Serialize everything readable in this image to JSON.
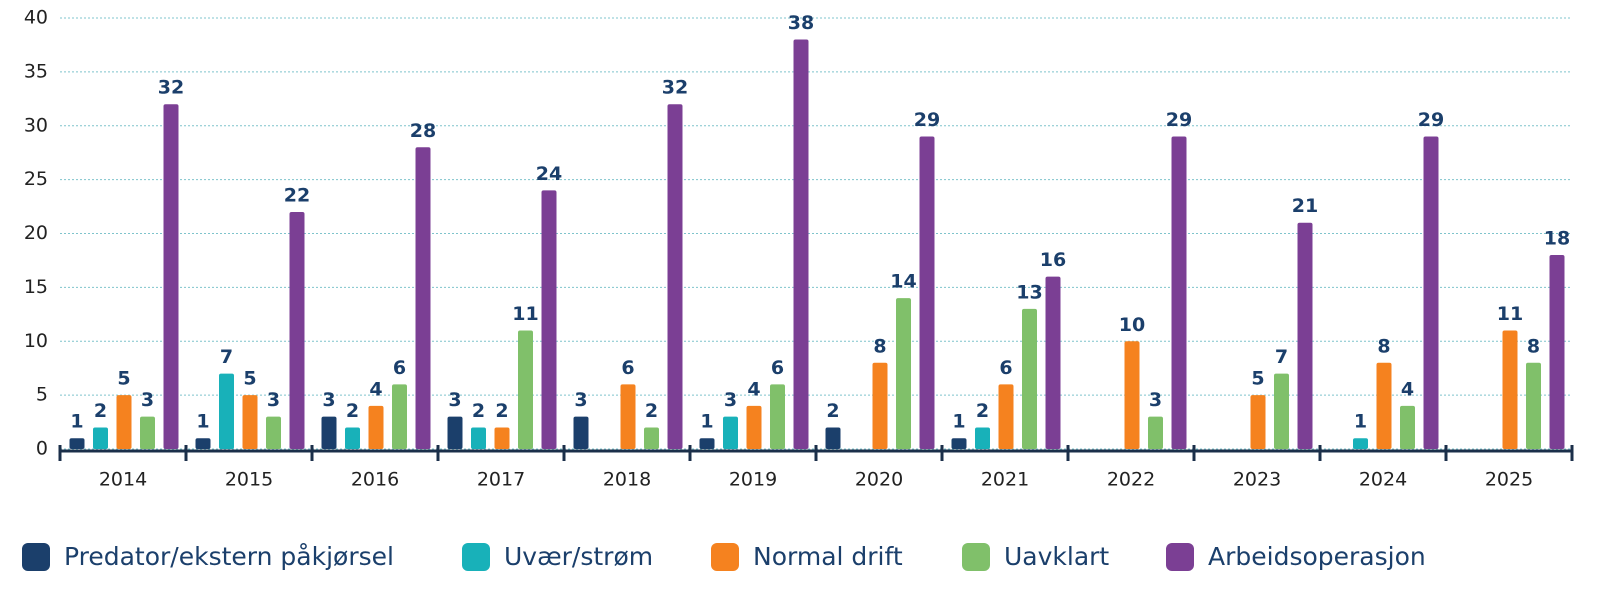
{
  "chart_data": {
    "type": "bar",
    "categories": [
      "2014",
      "2015",
      "2016",
      "2017",
      "2018",
      "2019",
      "2020",
      "2021",
      "2022",
      "2023",
      "2024",
      "2025"
    ],
    "series": [
      {
        "name": "Predator/ekstern påkjørsel",
        "color": "#1b3f6b",
        "values": [
          1,
          1,
          3,
          3,
          3,
          1,
          2,
          1,
          null,
          null,
          null,
          null
        ]
      },
      {
        "name": "Uvær/strøm",
        "color": "#18b1b9",
        "values": [
          2,
          7,
          2,
          2,
          null,
          3,
          null,
          2,
          null,
          null,
          1,
          null
        ]
      },
      {
        "name": "Normal drift",
        "color": "#f5821f",
        "values": [
          5,
          5,
          4,
          2,
          6,
          4,
          8,
          6,
          10,
          5,
          8,
          11
        ]
      },
      {
        "name": "Uavklart",
        "color": "#80c06a",
        "values": [
          3,
          3,
          6,
          11,
          2,
          6,
          14,
          13,
          3,
          7,
          4,
          8
        ]
      },
      {
        "name": "Arbeidsoperasjon",
        "color": "#7b3f94",
        "values": [
          32,
          22,
          28,
          24,
          32,
          38,
          29,
          16,
          29,
          21,
          29,
          18
        ]
      }
    ],
    "ylim": [
      0,
      40
    ],
    "yticks": [
      0,
      5,
      10,
      15,
      20,
      25,
      30,
      35,
      40
    ],
    "grid": true
  }
}
